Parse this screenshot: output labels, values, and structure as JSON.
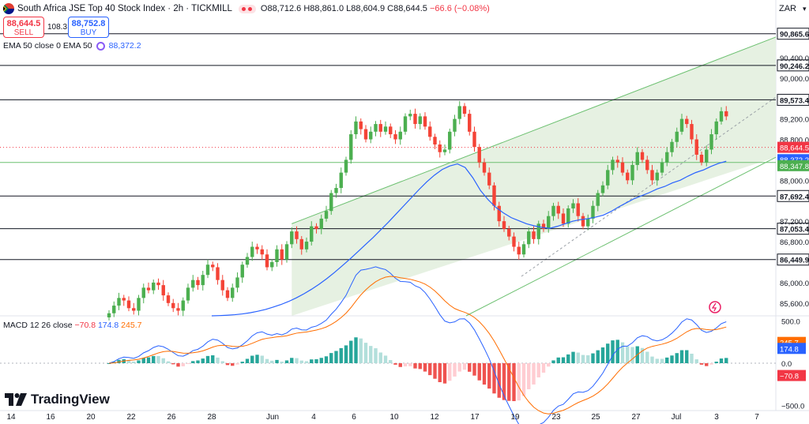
{
  "header": {
    "symbol": "South Africa JSE Top 40 Stock Index · 2h · TICKMILL",
    "ohlc_open": "O88,712.6",
    "ohlc_high": "H88,861.0",
    "ohlc_low": "L88,604.9",
    "ohlc_close": "C88,644.5",
    "ohlc_change": "−66.6 (−0.08%)",
    "currency": "ZAR"
  },
  "trade": {
    "sell_price": "88,644.5",
    "sell_label": "SELL",
    "buy_price": "88,752.8",
    "buy_label": "BUY",
    "spread": "108.3"
  },
  "ema_legend": {
    "label": "EMA 50 close 0 EMA 50",
    "value": "88,372.2"
  },
  "macd_legend": {
    "label": "MACD 12 26 close",
    "hist": "−70.8",
    "macd": "174.8",
    "signal": "245.7"
  },
  "branding": {
    "logo": "TradingView"
  },
  "colors": {
    "up": "#26a69a",
    "down": "#ef5350",
    "candle_up": "#4caf50",
    "candle_down": "#f44336",
    "ema": "#2962ff",
    "macd": "#2962ff",
    "signal": "#ff6d00",
    "channel_fill": "#e3f0df",
    "channel_line": "#6cc070"
  },
  "chart_data": [
    {
      "type": "candlestick",
      "price_axis_ticks": [
        90400,
        90000,
        89200,
        88800,
        88000,
        87200,
        86800,
        86000,
        85600
      ],
      "price_range": [
        85350,
        91000
      ],
      "x_tick_labels": [
        "14",
        "16",
        "20",
        "22",
        "26",
        "28",
        "Jun",
        "4",
        "6",
        "10",
        "12",
        "17",
        "19",
        "23",
        "25",
        "27",
        "Jul",
        "3",
        "7"
      ],
      "horizontal_levels": [
        90865.6,
        90246.2,
        89573.4,
        87692.4,
        87053.4,
        86449.9
      ],
      "price_labels": {
        "last": "88,644.5",
        "ema": "88,372.2",
        "support": "88,347.8"
      },
      "support_level": 88347.8,
      "last_price": 88644.5,
      "ema50_value": 88372.2,
      "channel": {
        "start_index": 95,
        "end_index": 155,
        "lower_start": 85350,
        "lower_end": 88450,
        "upper_start": 87150,
        "upper_end": 90800
      },
      "closes": [
        85400,
        85550,
        85700,
        85650,
        85500,
        85450,
        85700,
        85900,
        85850,
        86000,
        85950,
        85750,
        85600,
        85500,
        85450,
        85650,
        85900,
        86050,
        85950,
        86150,
        86350,
        86300,
        86050,
        85850,
        85700,
        85900,
        86100,
        86350,
        86500,
        86700,
        86650,
        86550,
        86300,
        86400,
        86650,
        86450,
        86750,
        87000,
        86850,
        86650,
        86800,
        87100,
        87050,
        87250,
        87400,
        87750,
        87850,
        88150,
        88400,
        88900,
        89150,
        89000,
        88800,
        88950,
        89100,
        88950,
        89050,
        88900,
        88800,
        88950,
        89250,
        89300,
        89100,
        89250,
        89050,
        88850,
        88700,
        88550,
        88600,
        88950,
        89200,
        89450,
        89300,
        88950,
        88650,
        88350,
        88150,
        87900,
        87500,
        87200,
        87050,
        86900,
        86700,
        86550,
        86750,
        87000,
        86850,
        87150,
        87050,
        87300,
        87500,
        87350,
        87150,
        87450,
        87550,
        87300,
        87100,
        87250,
        87500,
        87750,
        87900,
        88200,
        88400,
        88350,
        88150,
        88000,
        88300,
        88550,
        88400,
        88200,
        88000,
        88150,
        88350,
        88550,
        88750,
        88950,
        89200,
        89100,
        88800,
        88500,
        88350,
        88600,
        88900,
        89150,
        89350,
        89250
      ],
      "ema50": [
        85350,
        85355,
        85362,
        85372,
        85388,
        85410,
        85440,
        85475,
        85520,
        85570,
        85630,
        85700,
        85780,
        85870,
        85970,
        86080,
        86200,
        86330,
        86460,
        86600,
        86740,
        86880,
        87030,
        87180,
        87340,
        87500,
        87660,
        87820,
        87970,
        88100,
        88210,
        88280,
        88320,
        88250,
        88050,
        87800,
        87620,
        87470,
        87360,
        87270,
        87210,
        87150,
        87110,
        87080,
        87060,
        87100,
        87150,
        87200,
        87230,
        87250,
        87280,
        87320,
        87390,
        87480,
        87560,
        87640,
        87700,
        87760,
        87830,
        87880,
        87950,
        88000,
        88080,
        88150,
        88200,
        88270,
        88330,
        88372
      ],
      "macd_axis_ticks": [
        500,
        0,
        -500
      ],
      "macd_range": [
        -560,
        560
      ],
      "macd_current": {
        "macd": 174.8,
        "signal": 245.7,
        "hist": -70.8
      }
    }
  ]
}
